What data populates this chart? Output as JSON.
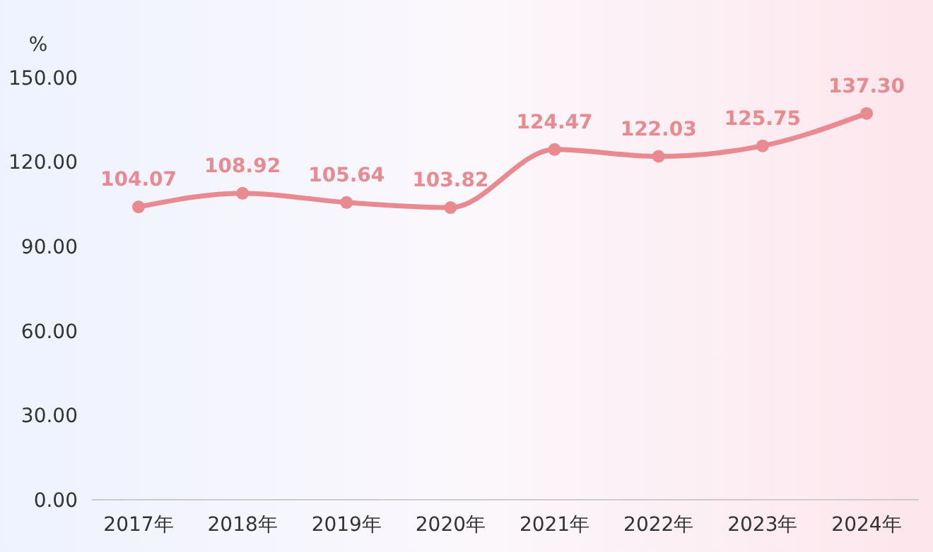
{
  "chart_data": {
    "type": "line",
    "ylabel": "%",
    "categories": [
      "2017年",
      "2018年",
      "2019年",
      "2020年",
      "2021年",
      "2022年",
      "2023年",
      "2024年"
    ],
    "series": [
      {
        "color": "#e88a90",
        "values": [
          104.07,
          108.92,
          105.64,
          103.82,
          124.47,
          122.03,
          125.75,
          137.3
        ],
        "value_labels": [
          "104.07",
          "108.92",
          "105.64",
          "103.82",
          "124.47",
          "122.03",
          "125.75",
          "137.30"
        ]
      }
    ],
    "ylim": [
      0,
      150
    ],
    "yticks": [
      {
        "value": 0,
        "label": "0.00"
      },
      {
        "value": 30,
        "label": "30.00"
      },
      {
        "value": 60,
        "label": "60.00"
      },
      {
        "value": 90,
        "label": "90.00"
      },
      {
        "value": 120,
        "label": "120.00"
      },
      {
        "value": 150,
        "label": "150.00"
      }
    ],
    "marker": "circle",
    "grid": false
  }
}
